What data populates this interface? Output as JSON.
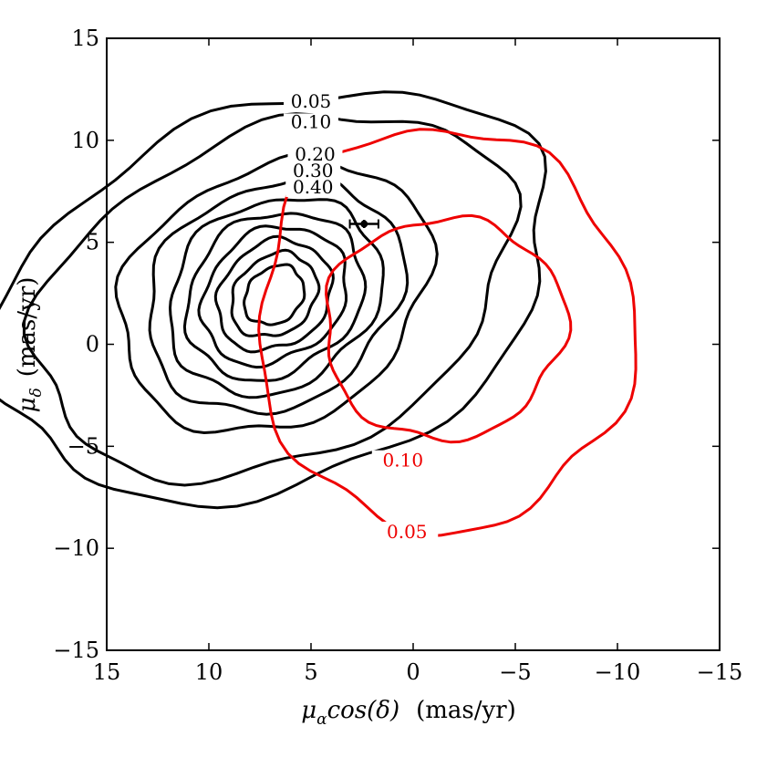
{
  "chart_data": {
    "type": "contour",
    "xlabel_symbol": "μ",
    "xlabel_sub": "α",
    "xlabel_text": "cos(δ)",
    "xlabel_units": "(mas/yr)",
    "ylabel_symbol": "μ",
    "ylabel_sub": "δ",
    "ylabel_units": "(mas/yr)",
    "xlim": [
      15,
      -15
    ],
    "ylim": [
      -15,
      15
    ],
    "xticks": [
      15,
      10,
      5,
      0,
      -5,
      -10,
      -15
    ],
    "yticks": [
      15,
      10,
      5,
      0,
      -5,
      -10,
      -15
    ],
    "xtick_labels": [
      "15",
      "10",
      "5",
      "0",
      "−5",
      "−10",
      "−15"
    ],
    "ytick_labels": [
      "15",
      "10",
      "5",
      "0",
      "−5",
      "−10",
      "−15"
    ],
    "black_center": [
      6.8,
      2.4
    ],
    "black_levels": [
      {
        "label": "0.05",
        "rx": 14.2,
        "ry": 9.2,
        "rot": 22
      },
      {
        "label": "0.10",
        "rx": 12.3,
        "ry": 8.0,
        "rot": 25
      },
      {
        "label": "0.20",
        "rx": 8.0,
        "ry": 6.2,
        "rot": 30
      },
      {
        "label": "0.30",
        "rx": 6.6,
        "ry": 5.3,
        "rot": 32
      },
      {
        "label": "0.40",
        "rx": 5.5,
        "ry": 4.5,
        "rot": 34
      },
      {
        "label": "",
        "rx": 4.6,
        "ry": 3.8,
        "rot": 36
      },
      {
        "label": "",
        "rx": 3.8,
        "ry": 3.1,
        "rot": 38
      },
      {
        "label": "",
        "rx": 3.0,
        "ry": 2.5,
        "rot": 40
      },
      {
        "label": "",
        "rx": 2.3,
        "ry": 1.85,
        "rot": 42
      },
      {
        "label": "",
        "rx": 1.6,
        "ry": 1.3,
        "rot": 44
      }
    ],
    "black_label_positions": [
      [
        5.0,
        11.6
      ],
      [
        5.0,
        10.6
      ],
      [
        4.8,
        9.0
      ],
      [
        4.9,
        8.2
      ],
      [
        4.9,
        7.4
      ]
    ],
    "red_center": [
      -1.5,
      0.8
    ],
    "red_levels": [
      {
        "label": "0.10",
        "rx": 5.9,
        "ry": 5.4,
        "rot": 10,
        "label_pos": [
          0.5,
          -6.0
        ]
      },
      {
        "label": "0.05",
        "rx": 9.2,
        "ry": 9.9,
        "rot": 5,
        "label_pos": [
          0.3,
          -9.5
        ]
      }
    ],
    "data_point": {
      "x": 2.4,
      "y": 5.9,
      "xerr": 0.7,
      "yerr": 0.2
    },
    "line_colors": {
      "black": "#000000",
      "red": "#ee0000"
    }
  }
}
